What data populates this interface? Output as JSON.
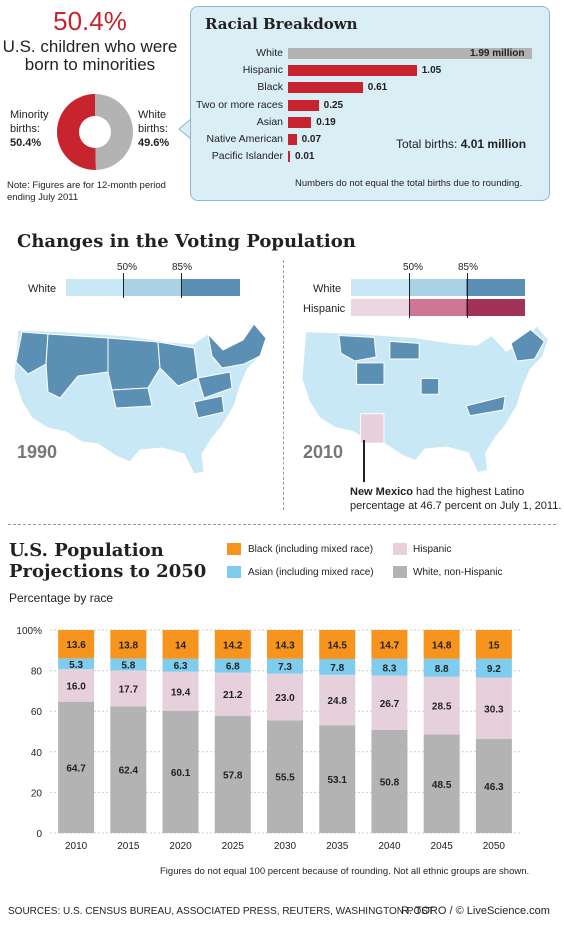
{
  "header": {
    "big_percent": "50.4%",
    "subtitle_line1": "U.S. children who were",
    "subtitle_line2": "born to minorities",
    "minority_label_1": "Minority",
    "minority_label_2": "births:",
    "minority_value": "50.4%",
    "white_label_1": "White",
    "white_label_2": "births:",
    "white_value": "49.6%",
    "note_line1": "Note: Figures are for 12-month period",
    "note_line2": "ending July 2011"
  },
  "racial_breakdown": {
    "title": "Racial Breakdown",
    "total_label": "Total births:",
    "total_value": "4.01 million",
    "footnote": "Numbers do not equal the total births due to rounding.",
    "rows": [
      {
        "label": "White",
        "value": 1.99,
        "text": "1.99 million"
      },
      {
        "label": "Hispanic",
        "value": 1.05,
        "text": "1.05"
      },
      {
        "label": "Black",
        "value": 0.61,
        "text": "0.61"
      },
      {
        "label": "Two or more races",
        "value": 0.25,
        "text": "0.25"
      },
      {
        "label": "Asian",
        "value": 0.19,
        "text": "0.19"
      },
      {
        "label": "Native American",
        "value": 0.07,
        "text": "0.07"
      },
      {
        "label": "Pacific Islander",
        "value": 0.01,
        "text": "0.01"
      }
    ]
  },
  "voting": {
    "title": "Changes in the Voting Population",
    "tick_50": "50%",
    "tick_85": "85%",
    "white_label": "White",
    "hispanic_label": "Hispanic",
    "year_1990": "1990",
    "year_2010": "2010",
    "callout_bold": "New Mexico",
    "callout_line1": " had the highest Latino",
    "callout_line2": "percentage at 46.7 percent on July 1, 2011."
  },
  "projections": {
    "title_line1": "U.S. Population",
    "title_line2": "Projections to 2050",
    "subtitle": "Percentage by race",
    "footnote": "Figures do not equal 100 percent because of rounding. Not all ethnic groups are shown.",
    "legend": {
      "black": "Black (including mixed race)",
      "hispanic": "Hispanic",
      "asian": "Asian (including mixed race)",
      "white": "White, non-Hispanic"
    }
  },
  "footer": {
    "sources": "SOURCES: U.S. CENSUS BUREAU, ASSOCIATED PRESS, REUTERS, WASHINGTON POST",
    "credit": "R. TORO / © LiveScience.com"
  },
  "colors": {
    "red": "#c8242f",
    "gray": "#b3b3b3",
    "orange": "#f7941e",
    "sky": "#7fcdee",
    "pink": "#e6d0dc",
    "map_light": "#c9e8f5",
    "map_dark": "#5b8fb3"
  },
  "chart_data": [
    {
      "type": "pie",
      "title": "",
      "labels": [
        "Minority births",
        "White births"
      ],
      "values": [
        50.4,
        49.6
      ]
    },
    {
      "type": "bar",
      "title": "Racial Breakdown",
      "categories": [
        "White",
        "Hispanic",
        "Black",
        "Two or more races",
        "Asian",
        "Native American",
        "Pacific Islander"
      ],
      "values": [
        1.99,
        1.05,
        0.61,
        0.25,
        0.19,
        0.07,
        0.01
      ]
    },
    {
      "type": "bar",
      "title": "U.S. Population Projections to 2050",
      "subtitle": "Percentage by race",
      "categories": [
        "2010",
        "2015",
        "2020",
        "2025",
        "2030",
        "2035",
        "2040",
        "2045",
        "2050"
      ],
      "ylim": [
        0,
        100
      ],
      "yticks": [
        "0",
        "20",
        "40",
        "60",
        "80",
        "100%"
      ],
      "series": [
        {
          "name": "White, non-Hispanic",
          "values": [
            64.7,
            62.4,
            60.1,
            57.8,
            55.5,
            53.1,
            50.8,
            48.5,
            46.3
          ]
        },
        {
          "name": "Hispanic",
          "values": [
            16.0,
            17.7,
            19.4,
            21.2,
            23.0,
            24.8,
            26.7,
            28.5,
            30.3
          ]
        },
        {
          "name": "Asian (including mixed race)",
          "values": [
            5.3,
            5.8,
            6.3,
            6.8,
            7.3,
            7.8,
            8.3,
            8.8,
            9.2
          ]
        },
        {
          "name": "Black (including mixed race)",
          "values": [
            13.6,
            13.8,
            14,
            14.2,
            14.3,
            14.5,
            14.7,
            14.8,
            15
          ]
        }
      ]
    }
  ]
}
